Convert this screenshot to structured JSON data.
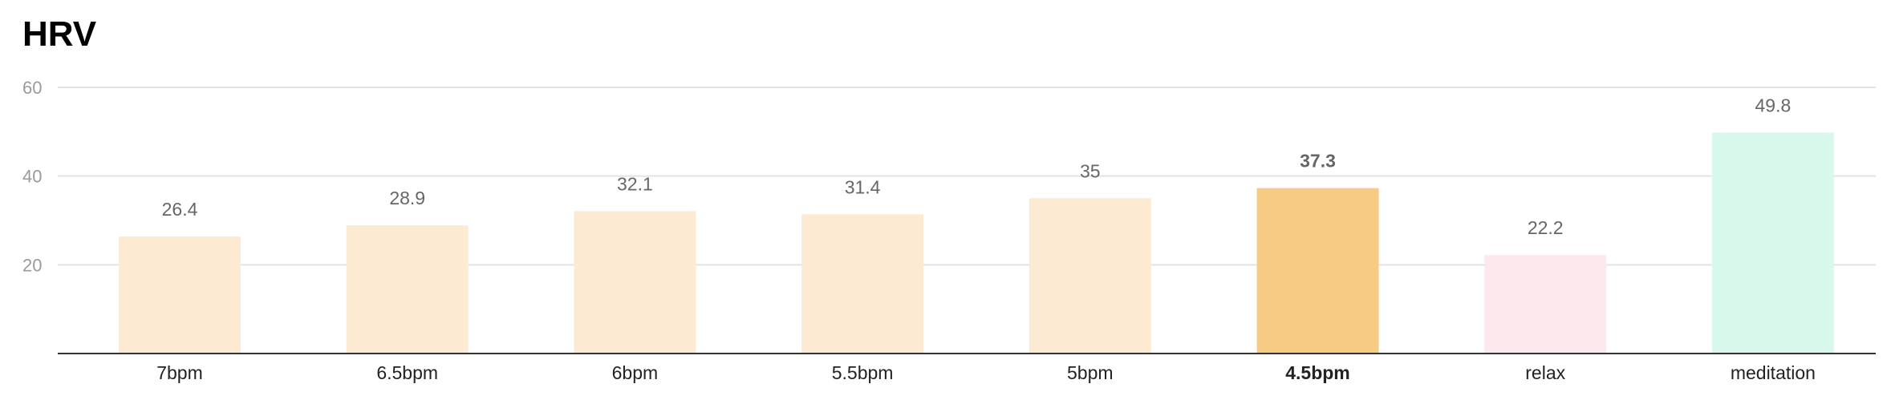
{
  "chart_data": {
    "type": "bar",
    "title": "HRV",
    "xlabel": "",
    "ylabel": "",
    "categories": [
      "7bpm",
      "6.5bpm",
      "6bpm",
      "5.5bpm",
      "5bpm",
      "4.5bpm",
      "relax",
      "meditation"
    ],
    "values": [
      26.4,
      28.9,
      32.1,
      31.4,
      35,
      37.3,
      22.2,
      49.8
    ],
    "data_labels": [
      "26.4",
      "28.9",
      "32.1",
      "31.4",
      "35",
      "37.3",
      "22.2",
      "49.8"
    ],
    "highlight": "4.5bpm",
    "colors": [
      "#fcebd2",
      "#fcebd2",
      "#fcebd2",
      "#fcebd2",
      "#fcebd2",
      "#f6cb84",
      "#fce9ee",
      "#d9f8ec"
    ],
    "yticks": [
      20,
      40,
      60
    ],
    "ytick_labels": [
      "20",
      "40",
      "60"
    ],
    "ylim": [
      0,
      60
    ],
    "grid": true,
    "legend": "none"
  }
}
